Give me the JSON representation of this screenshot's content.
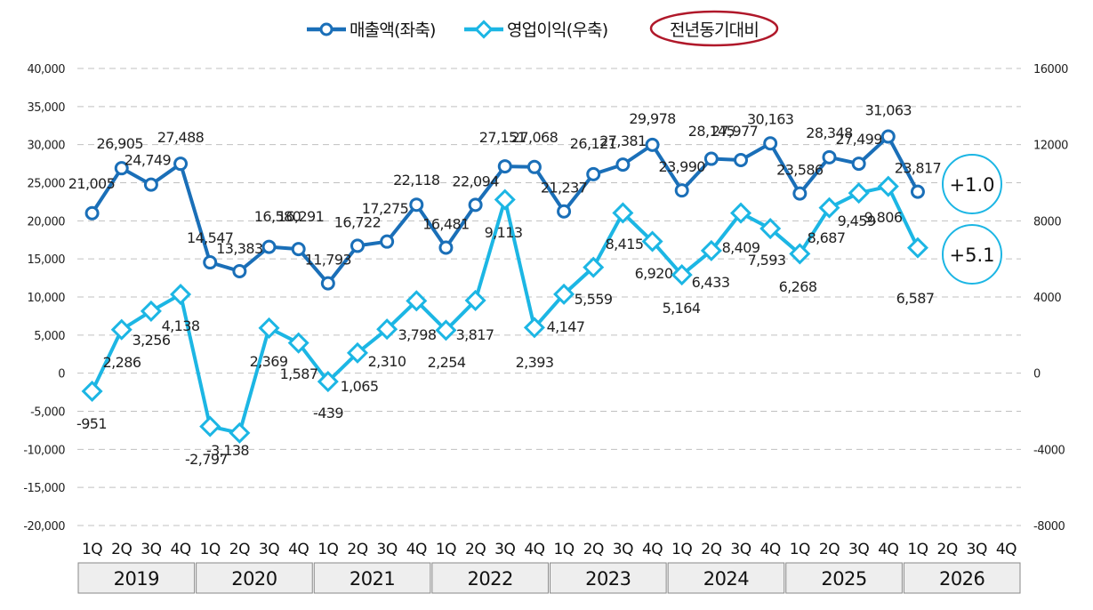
{
  "legend": {
    "sales_label": "매출액(좌축)",
    "op_label": "영업이익(우축)",
    "yoy_label": "전년동기대비"
  },
  "yoy": {
    "sales": "+1.0",
    "op": "+5.1"
  },
  "colors": {
    "sales": "#1a6fb8",
    "op": "#1cb6e4",
    "yoy_oval": "#b0182a",
    "yoy_circle": "#1cb6e4",
    "grid": "#c0c0c0",
    "year_box": "#eeeeee"
  },
  "chart_data": {
    "type": "line",
    "quarters": [
      "1Q",
      "2Q",
      "3Q",
      "4Q",
      "1Q",
      "2Q",
      "3Q",
      "4Q",
      "1Q",
      "2Q",
      "3Q",
      "4Q",
      "1Q",
      "2Q",
      "3Q",
      "4Q",
      "1Q",
      "2Q",
      "3Q",
      "4Q",
      "1Q",
      "2Q",
      "3Q",
      "4Q",
      "1Q",
      "2Q",
      "3Q",
      "4Q",
      "1Q",
      "2Q",
      "3Q",
      "4Q"
    ],
    "years": [
      "2019",
      "2020",
      "2021",
      "2022",
      "2023",
      "2024",
      "2025",
      "2026"
    ],
    "left_axis": {
      "min": -20000,
      "max": 40000,
      "step": 5000,
      "ticks": [
        "40,000",
        "35,000",
        "30,000",
        "25,000",
        "20,000",
        "15,000",
        "10,000",
        "5,000",
        "0",
        "-5,000",
        "-10,000",
        "-15,000",
        "-20,000"
      ]
    },
    "right_axis": {
      "min": -8000,
      "max": 16000,
      "step": 4000,
      "ticks": [
        "16000",
        "12000",
        "8000",
        "4000",
        "0",
        "-4000",
        "-8000"
      ]
    },
    "series": [
      {
        "name": "매출액(좌축)",
        "axis": "left",
        "values": [
          21005,
          26905,
          24749,
          27488,
          14547,
          13383,
          16580,
          16291,
          11793,
          16722,
          17275,
          22118,
          16481,
          22094,
          27151,
          27068,
          21237,
          26121,
          27381,
          29978,
          23990,
          28145,
          27977,
          30163,
          23586,
          28348,
          27499,
          31063,
          23817
        ],
        "labels": [
          "21,005",
          "26,905",
          "24,749",
          "27,488",
          "14,547",
          "13,383",
          "16,580",
          "16,291",
          "11,793",
          "16,722",
          "17,275",
          "22,118",
          "16,481",
          "22,094",
          "27,151",
          "27,068",
          "21,237",
          "26,121",
          "27,381",
          "29,978",
          "23,990",
          "28,145",
          "27,977",
          "30,163",
          "23,586",
          "28,348",
          "27,499",
          "31,063",
          "23,817"
        ]
      },
      {
        "name": "영업이익(우축)",
        "axis": "right",
        "values": [
          -951,
          2286,
          3256,
          4138,
          -2797,
          -3138,
          2369,
          1587,
          -439,
          1065,
          2310,
          3798,
          2254,
          3817,
          9113,
          2393,
          4147,
          5559,
          8415,
          6920,
          5164,
          6433,
          8409,
          7593,
          6268,
          8687,
          9459,
          9806,
          6587
        ],
        "labels": [
          "-951",
          "2,286",
          "3,256",
          "4,138",
          "-2,797",
          "-3,138",
          "2,369",
          "1,587",
          "-439",
          "1,065",
          "2,310",
          "3,798",
          "2,254",
          "3,817",
          "9,113",
          "2,393",
          "4,147",
          "5,559",
          "8,415",
          "6,920",
          "5,164",
          "6,433",
          "8,409",
          "7,593",
          "6,268",
          "8,687",
          "9,459",
          "9,806",
          "6,587"
        ]
      }
    ]
  }
}
